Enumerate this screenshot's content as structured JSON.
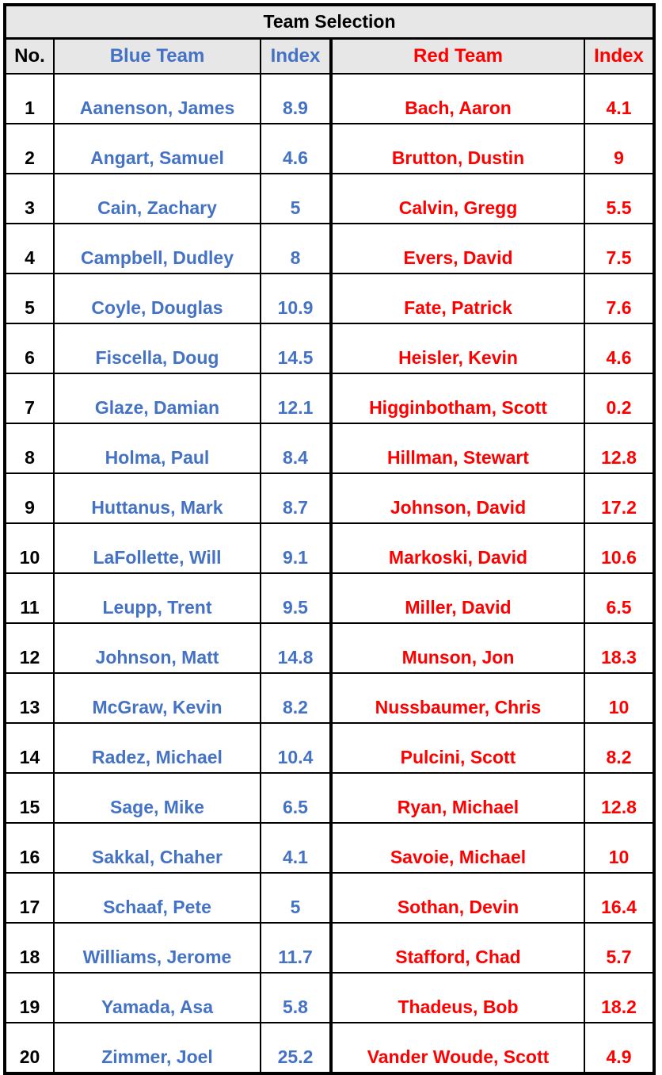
{
  "title": "Team Selection",
  "headers": {
    "no": "No.",
    "blue_team": "Blue Team",
    "blue_index": "Index",
    "red_team": "Red Team",
    "red_index": "Index"
  },
  "colors": {
    "blue": "#4472c4",
    "red": "#ff0000",
    "header_bg": "#e7e7e7"
  },
  "rows": [
    {
      "no": "1",
      "blue": "Aanenson, James",
      "blue_index": "8.9",
      "red": "Bach, Aaron",
      "red_index": "4.1"
    },
    {
      "no": "2",
      "blue": "Angart, Samuel",
      "blue_index": "4.6",
      "red": "Brutton, Dustin",
      "red_index": "9"
    },
    {
      "no": "3",
      "blue": "Cain, Zachary",
      "blue_index": "5",
      "red": "Calvin, Gregg",
      "red_index": "5.5"
    },
    {
      "no": "4",
      "blue": "Campbell, Dudley",
      "blue_index": "8",
      "red": "Evers, David",
      "red_index": "7.5"
    },
    {
      "no": "5",
      "blue": "Coyle, Douglas",
      "blue_index": "10.9",
      "red": "Fate, Patrick",
      "red_index": "7.6"
    },
    {
      "no": "6",
      "blue": "Fiscella, Doug",
      "blue_index": "14.5",
      "red": "Heisler, Kevin",
      "red_index": "4.6"
    },
    {
      "no": "7",
      "blue": "Glaze, Damian",
      "blue_index": "12.1",
      "red": "Higginbotham, Scott",
      "red_index": "0.2"
    },
    {
      "no": "8",
      "blue": "Holma, Paul",
      "blue_index": "8.4",
      "red": "Hillman, Stewart",
      "red_index": "12.8"
    },
    {
      "no": "9",
      "blue": "Huttanus, Mark",
      "blue_index": "8.7",
      "red": "Johnson, David",
      "red_index": "17.2"
    },
    {
      "no": "10",
      "blue": "LaFollette, Will",
      "blue_index": "9.1",
      "red": "Markoski, David",
      "red_index": "10.6"
    },
    {
      "no": "11",
      "blue": "Leupp, Trent",
      "blue_index": "9.5",
      "red": "Miller, David",
      "red_index": "6.5"
    },
    {
      "no": "12",
      "blue": "Johnson, Matt",
      "blue_index": "14.8",
      "red": "Munson, Jon",
      "red_index": "18.3"
    },
    {
      "no": "13",
      "blue": "McGraw, Kevin",
      "blue_index": "8.2",
      "red": "Nussbaumer, Chris",
      "red_index": "10"
    },
    {
      "no": "14",
      "blue": "Radez, Michael",
      "blue_index": "10.4",
      "red": "Pulcini, Scott",
      "red_index": "8.2"
    },
    {
      "no": "15",
      "blue": "Sage, Mike",
      "blue_index": "6.5",
      "red": "Ryan, Michael",
      "red_index": "12.8"
    },
    {
      "no": "16",
      "blue": "Sakkal, Chaher",
      "blue_index": "4.1",
      "red": "Savoie, Michael",
      "red_index": "10"
    },
    {
      "no": "17",
      "blue": "Schaaf, Pete",
      "blue_index": "5",
      "red": "Sothan, Devin",
      "red_index": "16.4"
    },
    {
      "no": "18",
      "blue": "Williams, Jerome",
      "blue_index": "11.7",
      "red": "Stafford, Chad",
      "red_index": "5.7"
    },
    {
      "no": "19",
      "blue": "Yamada, Asa",
      "blue_index": "5.8",
      "red": "Thadeus, Bob",
      "red_index": "18.2"
    },
    {
      "no": "20",
      "blue": "Zimmer, Joel",
      "blue_index": "25.2",
      "red": "Vander Woude, Scott",
      "red_index": "4.9"
    }
  ]
}
